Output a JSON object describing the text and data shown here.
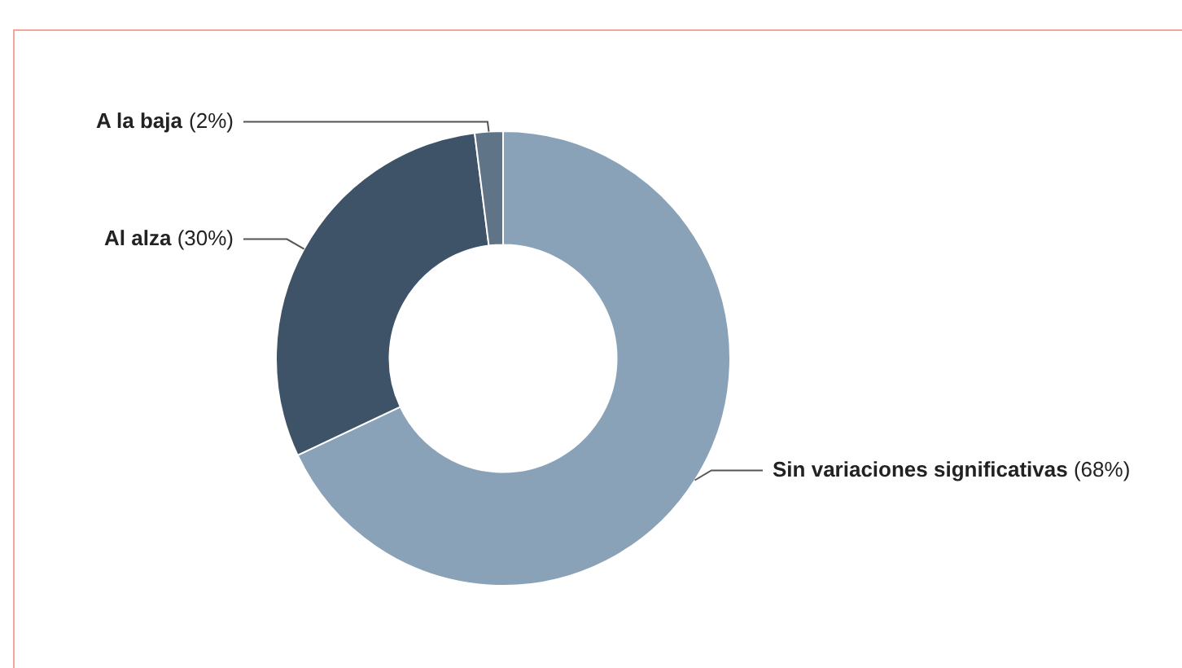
{
  "chart_data": {
    "type": "donut",
    "categories": [
      "Sin variaciones significativas",
      "Al alza",
      "A la baja"
    ],
    "values": [
      68,
      30,
      2
    ],
    "colors": [
      "#8aa2b8",
      "#3e5368",
      "#5f7587"
    ],
    "value_labels": [
      "(68%)",
      "(30%)",
      "(2%)"
    ],
    "legend": false
  }
}
